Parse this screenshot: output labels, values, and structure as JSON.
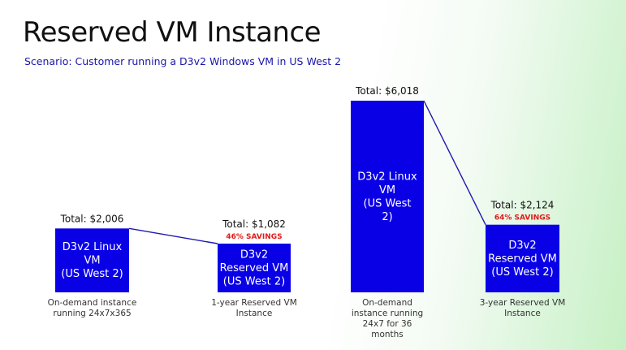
{
  "title": "Reserved VM Instance",
  "subtitle": "Scenario: Customer running a D3v2 Windows VM in US West 2",
  "colors": {
    "bar": "#0a00e6",
    "connector": "#1f1ab0",
    "savings": "#e01b1b",
    "title": "#111111",
    "subtitle": "#1a16a8"
  },
  "chart_data": {
    "type": "bar",
    "series": [
      {
        "values": [
          2006,
          1082,
          6018,
          2124
        ]
      }
    ],
    "bars": [
      {
        "value": 2006,
        "total_label": "Total: $2,006",
        "savings_label": "",
        "inner_lines": [
          "D3v2 Linux",
          "VM",
          "(US West 2)"
        ],
        "caption_lines": [
          "On-demand instance",
          "running 24x7x365"
        ]
      },
      {
        "value": 1082,
        "total_label": "Total: $1,082",
        "savings_label": "46% SAVINGS",
        "inner_lines": [
          "D3v2",
          "Reserved VM",
          "(US West 2)"
        ],
        "caption_lines": [
          "1-year Reserved VM",
          "Instance"
        ]
      },
      {
        "value": 6018,
        "total_label": "Total: $6,018",
        "savings_label": "",
        "inner_lines": [
          "D3v2 Linux",
          "VM",
          "(US West",
          "2)"
        ],
        "caption_lines": [
          "On-demand",
          "instance running",
          "24x7 for 36",
          "months"
        ]
      },
      {
        "value": 2124,
        "total_label": "Total: $2,124",
        "savings_label": "64% SAVINGS",
        "inner_lines": [
          "D3v2",
          "Reserved VM",
          "(US West 2)"
        ],
        "caption_lines": [
          "3-year Reserved VM",
          "Instance"
        ]
      }
    ],
    "connectors": [
      [
        0,
        1
      ],
      [
        2,
        3
      ]
    ],
    "axes_visible": false,
    "grid": false,
    "legend": "none"
  }
}
